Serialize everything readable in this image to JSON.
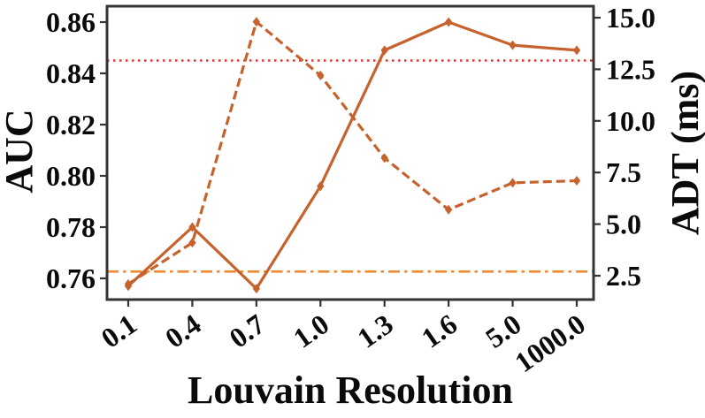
{
  "chart_data": {
    "type": "line",
    "title": "",
    "xlabel": "Louvain Resolution",
    "ylabel_left": "AUC",
    "ylabel_right": "ADT (ms)",
    "categories": [
      "0.1",
      "0.4",
      "0.7",
      "1.0",
      "1.3",
      "1.6",
      "5.0",
      "1000.0"
    ],
    "x_axis": {
      "scale": "categorical",
      "tick_rotation_deg": -35
    },
    "left_axis": {
      "label": "AUC",
      "tick_labels": [
        "0.76",
        "0.78",
        "0.80",
        "0.82",
        "0.84",
        "0.86"
      ],
      "tick_values": [
        0.76,
        0.78,
        0.8,
        0.82,
        0.84,
        0.86
      ],
      "range": [
        0.751,
        0.866
      ]
    },
    "right_axis": {
      "label": "ADT (ms)",
      "tick_labels": [
        "2.5",
        "5.0",
        "7.5",
        "10.0",
        "12.5",
        "15.0"
      ],
      "tick_values": [
        2.5,
        5.0,
        7.5,
        10.0,
        12.5,
        15.0
      ],
      "range": [
        1.3,
        15.6
      ]
    },
    "series": [
      {
        "name": "AUC",
        "axis": "left",
        "line_style": "solid",
        "marker": "diamond",
        "color": "#C7622D",
        "values": [
          0.757,
          0.78,
          0.756,
          0.796,
          0.849,
          0.86,
          0.851,
          0.849
        ]
      },
      {
        "name": "ADT",
        "axis": "right",
        "line_style": "dashed",
        "marker": "diamond",
        "color": "#C7622D",
        "values": [
          2.1,
          4.1,
          14.8,
          12.2,
          8.2,
          5.7,
          7.0,
          7.1
        ]
      }
    ],
    "reference_lines": [
      {
        "name": "auc-baseline",
        "axis": "left",
        "value": 0.845,
        "value_right_axis_equiv": 13.0,
        "style": "dotted",
        "color": "#E6352B"
      },
      {
        "name": "adt-baseline",
        "axis": "right",
        "value": 2.7,
        "value_left_axis_equiv": 0.762,
        "style": "dashdot",
        "color": "#F18A33"
      }
    ],
    "grid": false,
    "legend": false,
    "colors": {
      "series": "#C7622D",
      "auc_baseline": "#E6352B",
      "adt_baseline": "#F18A33",
      "spine": "#333333",
      "text": "#0a0a0a",
      "background": "#ffffff"
    }
  }
}
